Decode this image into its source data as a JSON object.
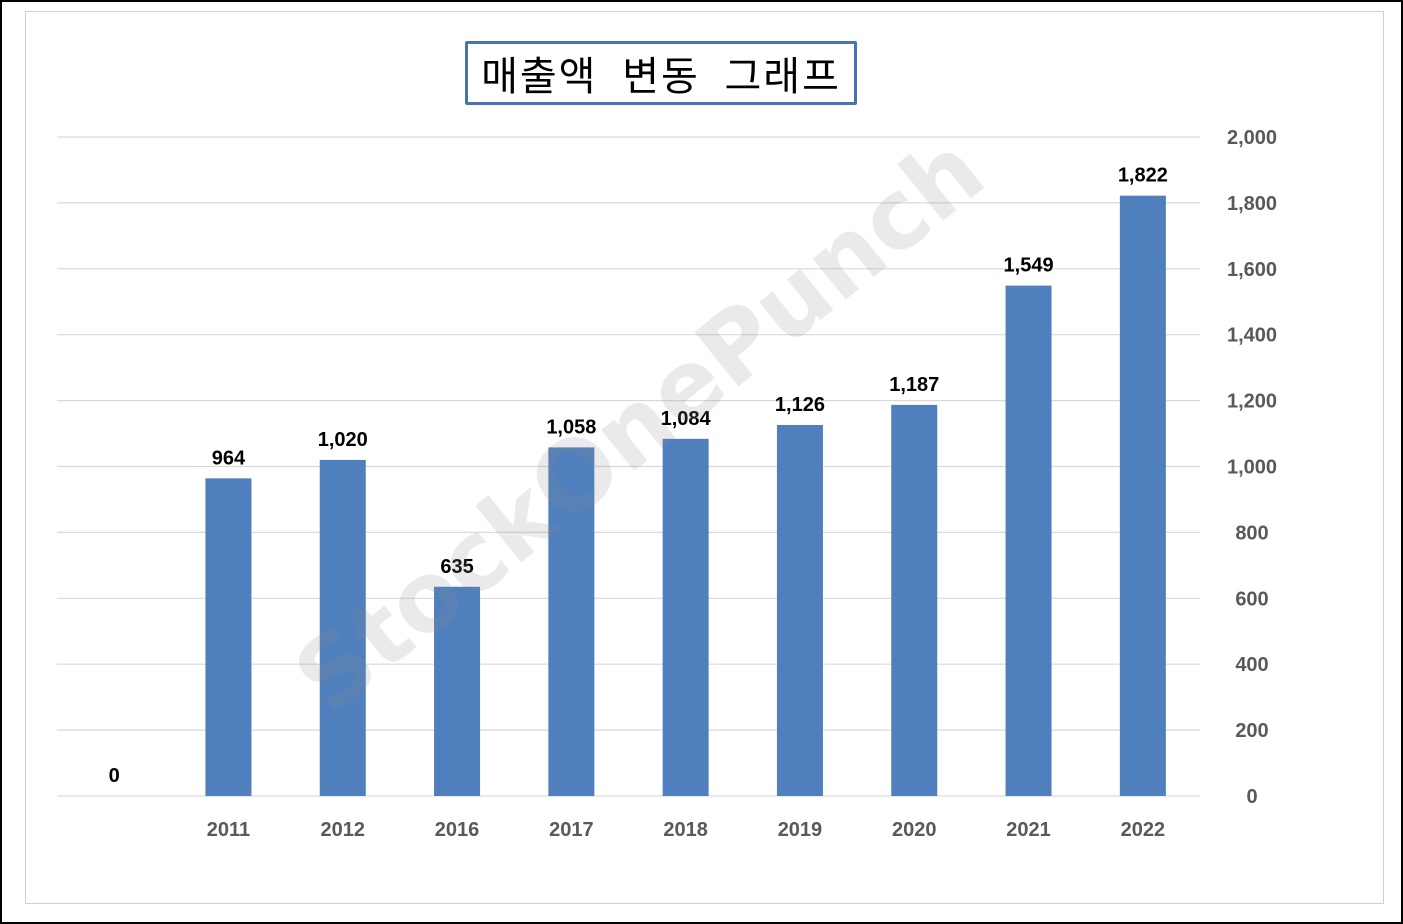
{
  "chart_data": {
    "type": "bar",
    "title": "매출액 변동 그래프",
    "categories": [
      "",
      "2011",
      "2012",
      "2016",
      "2017",
      "2018",
      "2019",
      "2020",
      "2021",
      "2022"
    ],
    "values": [
      0,
      964,
      1020,
      635,
      1058,
      1084,
      1126,
      1187,
      1549,
      1822
    ],
    "data_labels": [
      "0",
      "964",
      "1,020",
      "635",
      "1,058",
      "1,084",
      "1,126",
      "1,187",
      "1,549",
      "1,822"
    ],
    "ylim": [
      0,
      2000
    ],
    "yticks": [
      0,
      200,
      400,
      600,
      800,
      1000,
      1200,
      1400,
      1600,
      1800,
      2000
    ],
    "ytick_labels": [
      "0",
      "200",
      "400",
      "600",
      "800",
      "1,000",
      "1,200",
      "1,400",
      "1,600",
      "1,800",
      "2,000"
    ],
    "y_axis_side": "right",
    "grid": true,
    "xlabel": "",
    "ylabel": "",
    "bar_color": "#4f7fbc",
    "grid_color": "#d9d9d9"
  },
  "watermark": "StockOnePunch"
}
